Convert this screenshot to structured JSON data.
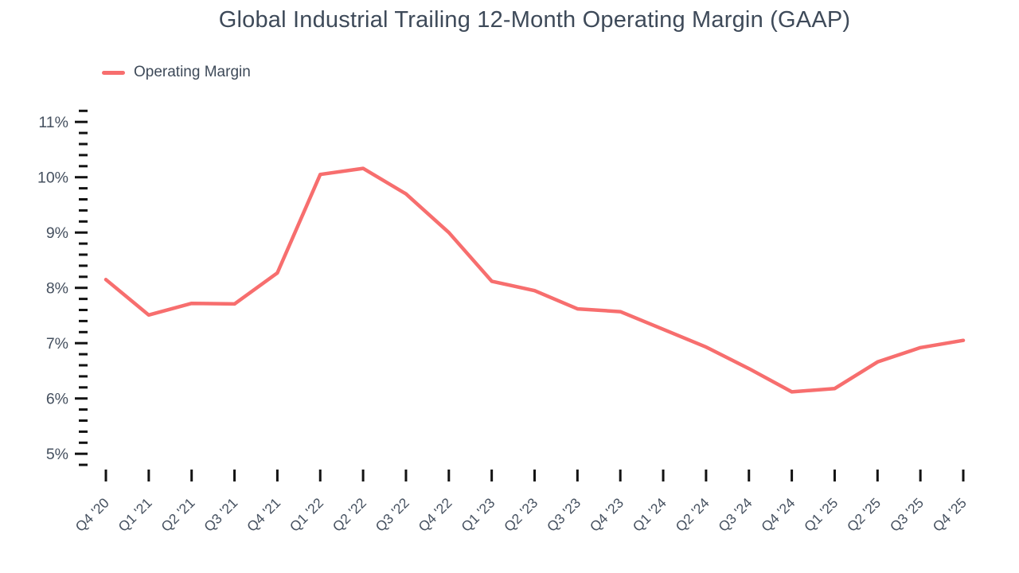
{
  "header": {
    "title": "Global Industrial Trailing 12-Month Operating Margin (GAAP)"
  },
  "legend": {
    "items": [
      {
        "label": "Operating Margin",
        "color": "#F76E6E"
      }
    ]
  },
  "colors": {
    "line": "#F76E6E",
    "title_text": "#3E4A59",
    "axis_text": "#45505F",
    "tick": "#131313",
    "background": "#ffffff"
  },
  "chart_data": {
    "type": "line",
    "title": "Global Industrial Trailing 12-Month Operating Margin (GAAP)",
    "xlabel": "",
    "ylabel": "",
    "unit": "%",
    "grid": false,
    "legend_position": "top-left",
    "categories": [
      "Q4 '20",
      "Q1 '21",
      "Q2 '21",
      "Q3 '21",
      "Q4 '21",
      "Q1 '22",
      "Q2 '22",
      "Q3 '22",
      "Q4 '22",
      "Q1 '23",
      "Q2 '23",
      "Q3 '23",
      "Q4 '23",
      "Q1 '24",
      "Q2 '24",
      "Q3 '24",
      "Q4 '24",
      "Q1 '25",
      "Q2 '25",
      "Q3 '25",
      "Q4 '25"
    ],
    "series": [
      {
        "name": "Operating Margin",
        "color": "#F76E6E",
        "values": [
          8.15,
          7.51,
          7.72,
          7.71,
          8.27,
          10.05,
          10.16,
          9.7,
          9.0,
          8.12,
          7.95,
          7.62,
          7.57,
          7.25,
          6.93,
          6.54,
          6.12,
          6.18,
          6.66,
          6.92,
          7.05
        ]
      }
    ],
    "y_axis": {
      "tick_labels": [
        "5%",
        "6%",
        "7%",
        "8%",
        "9%",
        "10%",
        "11%"
      ],
      "major_ticks": [
        5,
        6,
        7,
        8,
        9,
        10,
        11
      ],
      "minor_tick_step": 0.2,
      "range": [
        4.8,
        11.2
      ]
    }
  }
}
